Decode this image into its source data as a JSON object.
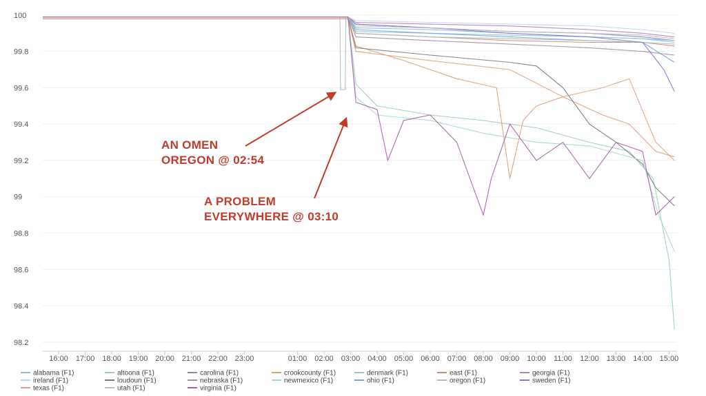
{
  "chart_data": {
    "type": "line",
    "title": "",
    "xlabel": "",
    "ylabel": "",
    "ylim": [
      98.15,
      100.03
    ],
    "xlim": [
      15.4,
      39.3
    ],
    "grid": true,
    "legend_position": "bottom",
    "y_ticks": [
      "100",
      "99.8",
      "99.6",
      "99.4",
      "99.2",
      "99",
      "98.8",
      "98.6",
      "98.4",
      "98.2"
    ],
    "y_tick_values": [
      100,
      99.8,
      99.6,
      99.4,
      99.2,
      99,
      98.8,
      98.6,
      98.4,
      98.2
    ],
    "x_ticks": [
      "16:00",
      "17:00",
      "18:00",
      "19:00",
      "20:00",
      "21:00",
      "22:00",
      "23:00",
      "01:00",
      "02:00",
      "03:00",
      "04:00",
      "05:00",
      "06:00",
      "07:00",
      "08:00",
      "09:00",
      "10:00",
      "11:00",
      "12:00",
      "13:00",
      "14:00",
      "15:00"
    ],
    "x_tick_values": [
      16,
      17,
      18,
      19,
      20,
      21,
      22,
      23,
      25,
      26,
      27,
      28,
      29,
      30,
      31,
      32,
      33,
      34,
      35,
      36,
      37,
      38,
      39
    ],
    "series": [
      {
        "name": "alabama (F1)",
        "color": "#8fb4e3",
        "x": [
          15.4,
          22,
          26.9,
          27.2,
          30,
          33,
          36,
          38,
          39.2
        ],
        "y": [
          99.99,
          99.99,
          99.99,
          99.93,
          99.92,
          99.9,
          99.88,
          99.87,
          99.85
        ]
      },
      {
        "name": "altoona (F1)",
        "color": "#9ccdb3",
        "x": [
          15.4,
          22,
          26.9,
          27.2,
          28,
          30,
          32,
          34,
          36,
          37.5,
          38.4,
          39,
          39.2
        ],
        "y": [
          99.99,
          99.99,
          99.99,
          99.62,
          99.5,
          99.45,
          99.42,
          99.38,
          99.3,
          99.25,
          99.1,
          98.65,
          98.27
        ]
      },
      {
        "name": "carolina (F1)",
        "color": "#8e7eb8",
        "x": [
          15.4,
          26.9,
          27.2,
          30,
          33,
          36,
          38,
          39.2
        ],
        "y": [
          99.99,
          99.99,
          99.95,
          99.93,
          99.91,
          99.9,
          99.88,
          99.86
        ]
      },
      {
        "name": "crookcounty (F1)",
        "color": "#e29a72",
        "x": [
          15.4,
          26.9,
          27.2,
          29,
          30,
          31,
          32.5,
          33,
          33.5,
          34,
          35,
          36.5,
          37.5,
          38.5,
          39.2
        ],
        "y": [
          99.98,
          99.98,
          99.83,
          99.75,
          99.7,
          99.65,
          99.6,
          99.1,
          99.42,
          99.5,
          99.55,
          99.45,
          99.4,
          99.25,
          99.22
        ]
      },
      {
        "name": "denmark (F1)",
        "color": "#8cc7d8",
        "x": [
          15.4,
          26.9,
          27.2,
          30,
          33,
          36,
          38,
          39.2
        ],
        "y": [
          99.99,
          99.99,
          99.91,
          99.9,
          99.89,
          99.88,
          99.87,
          99.86
        ]
      },
      {
        "name": "east (F1)",
        "color": "#d98378",
        "x": [
          15.4,
          26.9,
          27.2,
          30,
          33,
          36,
          38,
          39.2
        ],
        "y": [
          99.98,
          99.98,
          99.9,
          99.88,
          99.86,
          99.85,
          99.85,
          99.83
        ]
      },
      {
        "name": "georgia (F1)",
        "color": "#b07cc2",
        "x": [
          15.4,
          26.9,
          27.2,
          30,
          33,
          36,
          38,
          39.2
        ],
        "y": [
          99.99,
          99.99,
          99.96,
          99.95,
          99.94,
          99.92,
          99.9,
          99.88
        ]
      },
      {
        "name": "ireland (F1)",
        "color": "#bcd6f0",
        "x": [
          15.4,
          26.9,
          27.2,
          30,
          33,
          36,
          38,
          39.2
        ],
        "y": [
          99.99,
          99.99,
          99.97,
          99.96,
          99.95,
          99.94,
          99.92,
          99.9
        ]
      },
      {
        "name": "loudoun (F1)",
        "color": "#777777",
        "x": [
          15.4,
          26.9,
          27.2,
          30,
          33,
          34,
          35,
          36,
          37,
          38,
          38.5,
          39.2
        ],
        "y": [
          99.99,
          99.99,
          99.82,
          99.78,
          99.74,
          99.72,
          99.6,
          99.4,
          99.3,
          99.18,
          99.05,
          98.95
        ]
      },
      {
        "name": "nebraska (F1)",
        "color": "#a48aa2",
        "x": [
          15.4,
          26.9,
          27.2,
          30,
          33,
          36,
          38,
          39.2
        ],
        "y": [
          99.99,
          99.99,
          99.88,
          99.86,
          99.84,
          99.82,
          99.8,
          99.78
        ]
      },
      {
        "name": "newmexico (F1)",
        "color": "#a6d9cc",
        "x": [
          15.4,
          26.9,
          27.2,
          28,
          30,
          32,
          34,
          36,
          38,
          38.6,
          39.2
        ],
        "y": [
          99.99,
          99.99,
          99.55,
          99.45,
          99.42,
          99.35,
          99.3,
          99.28,
          99.2,
          98.9,
          98.7
        ]
      },
      {
        "name": "ohio (F1)",
        "color": "#7a9fe0",
        "x": [
          15.4,
          26.9,
          27.2,
          30,
          33,
          36,
          38,
          39.2
        ],
        "y": [
          99.99,
          99.99,
          99.92,
          99.9,
          99.88,
          99.86,
          99.85,
          99.74
        ]
      },
      {
        "name": "oregon (F1)",
        "color": "#9fc2b5",
        "x": [
          15.4,
          26.6,
          26.62,
          26.8,
          26.82,
          26.9,
          27.2,
          30,
          33,
          36,
          38,
          39.2
        ],
        "y": [
          99.99,
          99.99,
          99.59,
          99.59,
          99.99,
          99.99,
          99.9,
          99.88,
          99.87,
          99.86,
          99.85,
          99.84
        ]
      },
      {
        "name": "sweden (F1)",
        "color": "#8077c9",
        "x": [
          15.4,
          26.9,
          27.2,
          30,
          33,
          36,
          38,
          38.8,
          39.2
        ],
        "y": [
          99.99,
          99.99,
          99.95,
          99.93,
          99.9,
          99.88,
          99.85,
          99.7,
          99.58
        ]
      },
      {
        "name": "texas (F1)",
        "color": "#e0a07a",
        "x": [
          15.4,
          26.9,
          27.2,
          30,
          33,
          35,
          36.5,
          37.5,
          38.5,
          39.2
        ],
        "y": [
          99.98,
          99.98,
          99.8,
          99.75,
          99.7,
          99.55,
          99.6,
          99.65,
          99.3,
          99.2
        ]
      },
      {
        "name": "utah (F1)",
        "color": "#b8bdc2",
        "x": [
          15.4,
          26.9,
          27.2,
          30,
          33,
          36,
          38,
          39.2
        ],
        "y": [
          99.99,
          99.99,
          99.94,
          99.93,
          99.91,
          99.9,
          99.89,
          99.87
        ]
      },
      {
        "name": "virginia (F1)",
        "color": "#a55da8",
        "x": [
          15.4,
          26.9,
          27.2,
          28,
          28.4,
          29,
          30,
          31,
          31.5,
          32,
          32.3,
          33,
          34,
          35,
          36,
          37,
          38,
          38.5,
          39.2
        ],
        "y": [
          99.99,
          99.99,
          99.52,
          99.48,
          99.2,
          99.42,
          99.45,
          99.3,
          99.1,
          98.9,
          99.1,
          99.4,
          99.2,
          99.3,
          99.1,
          99.3,
          99.25,
          98.9,
          99.0
        ]
      }
    ],
    "annotations": [
      {
        "lines": [
          "AN OMEN",
          "OREGON @ 02:54"
        ],
        "target_x": 26.6,
        "target_y": 99.59
      },
      {
        "lines": [
          "A PROBLEM",
          "EVERYWHERE @ 03:10"
        ],
        "target_x": 27.0,
        "target_y": 99.45
      }
    ]
  }
}
